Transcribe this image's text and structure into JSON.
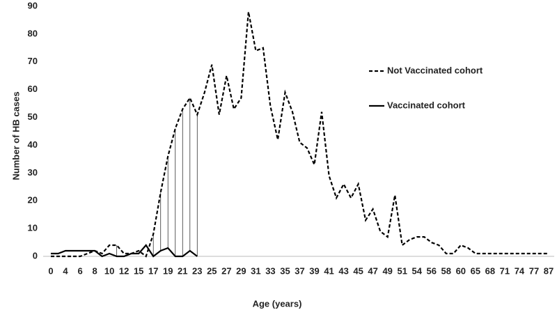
{
  "chart_data": {
    "type": "line",
    "x_label": "Age (years)",
    "y_label": "Number of HB cases",
    "categories": [
      "0",
      null,
      "4",
      null,
      "6",
      null,
      "8",
      null,
      "10",
      null,
      "12",
      null,
      "15",
      null,
      "17",
      null,
      "19",
      null,
      "21",
      null,
      "23",
      null,
      "25",
      null,
      "27",
      null,
      "29",
      null,
      "31",
      null,
      "33",
      null,
      "35",
      null,
      "37",
      null,
      "39",
      null,
      "41",
      null,
      "43",
      null,
      "45",
      null,
      "47",
      null,
      "49",
      null,
      "51",
      null,
      "54",
      null,
      "56",
      null,
      "58",
      null,
      "60",
      null,
      "65",
      null,
      "68",
      null,
      "71",
      null,
      "74",
      null,
      "77",
      null,
      "87"
    ],
    "series": [
      {
        "name": "Not Vaccinated cohort",
        "color": "#000000",
        "dash": true,
        "values": [
          0,
          0,
          0,
          0,
          0,
          1,
          2,
          1,
          4,
          4,
          1,
          1,
          2,
          0,
          8,
          23,
          36,
          46,
          53,
          57,
          51,
          59,
          69,
          51,
          65,
          53,
          57,
          88,
          74,
          75,
          54,
          42,
          59,
          52,
          41,
          39,
          33,
          52,
          29,
          21,
          26,
          21,
          26,
          13,
          17,
          9,
          7,
          22,
          4,
          6,
          7,
          7,
          5,
          4,
          1,
          1,
          4,
          3,
          1,
          1,
          1,
          1,
          1,
          1,
          1,
          1,
          1,
          1,
          1
        ]
      },
      {
        "name": "Vaccinated cohort",
        "color": "#000000",
        "dash": false,
        "values": [
          1,
          1,
          2,
          2,
          2,
          2,
          2,
          0,
          1,
          0,
          0,
          1,
          1,
          4,
          0,
          2,
          3,
          0,
          0,
          2,
          0,
          null,
          null,
          null,
          null,
          null,
          null,
          null,
          null,
          null,
          null,
          null,
          null,
          null,
          null,
          null,
          null,
          null,
          null,
          null,
          null,
          null,
          null,
          null,
          null,
          null,
          null,
          null,
          null,
          null,
          null,
          null,
          null,
          null,
          null,
          null,
          null,
          null,
          null,
          null,
          null,
          null,
          null,
          null,
          null,
          null,
          null,
          null,
          null
        ]
      }
    ],
    "ylim": [
      0,
      90
    ],
    "yticks": [
      0,
      10,
      20,
      30,
      40,
      50,
      60,
      70,
      80,
      90
    ],
    "legend": "right",
    "grid": false
  }
}
